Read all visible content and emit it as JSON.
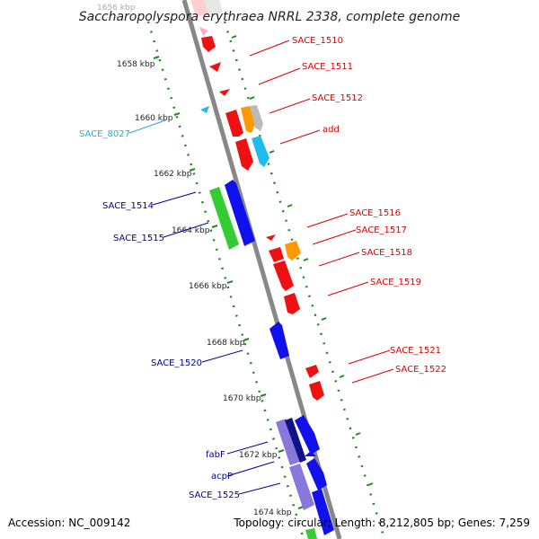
{
  "title": "Saccharopolyspora erythraea NRRL 2338, complete genome",
  "accession": "Accession: NC_009142",
  "summary": "Topology: circular; Length: 8,212,805 bp; Genes: 7,259",
  "scale_labels": [
    "1656 kbp",
    "1658 kbp",
    "1660 kbp",
    "1662 kbp",
    "1664 kbp",
    "1666 kbp",
    "1668 kbp",
    "1670 kbp",
    "1672 kbp",
    "1674 kbp"
  ],
  "gene_labels": {
    "SACE_1510": "SACE_1510",
    "SACE_1511": "SACE_1511",
    "SACE_1512": "SACE_1512",
    "add": "add",
    "SACE_8027": "SACE_8027",
    "SACE_1514": "SACE_1514",
    "SACE_1515": "SACE_1515",
    "SACE_1516": "SACE_1516",
    "SACE_1517": "SACE_1517",
    "SACE_1518": "SACE_1518",
    "SACE_1519": "SACE_1519",
    "SACE_1520": "SACE_1520",
    "SACE_1521": "SACE_1521",
    "SACE_1522": "SACE_1522",
    "fabF": "fabF",
    "acpP": "acpP",
    "SACE_1525": "SACE_1525"
  },
  "colors": {
    "red": "#ee1111",
    "blue": "#1111ee",
    "green": "#33cc33",
    "cyan": "#22bbee",
    "orange": "#ff9900",
    "purple": "#8877dd",
    "navy": "#111188",
    "gray": "#bbbbbb",
    "pink": "#ffaacc",
    "label_red": "#dd0000",
    "label_blue": "#000099",
    "label_cyan": "#22aadd",
    "backbone": "#888888",
    "tick_green": "#228822"
  }
}
